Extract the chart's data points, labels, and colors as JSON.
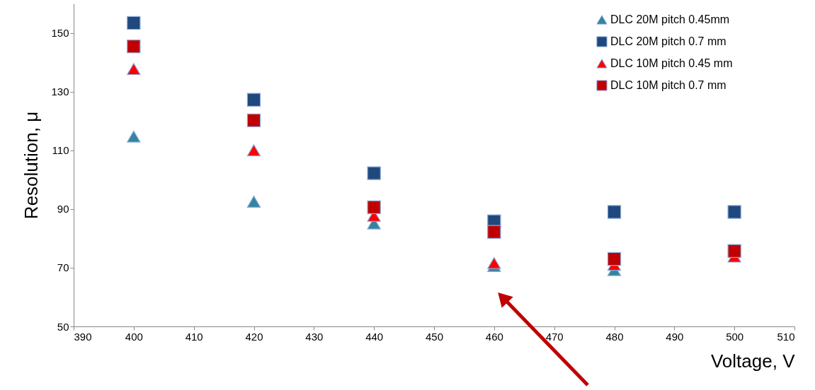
{
  "chart_data": {
    "type": "scatter",
    "xlabel": "Voltage, V",
    "ylabel": "Resolution, μ",
    "x": [
      400,
      420,
      440,
      460,
      480,
      500
    ],
    "xlim": [
      390,
      510
    ],
    "xticks": [
      390,
      400,
      410,
      420,
      430,
      440,
      450,
      460,
      470,
      480,
      490,
      500,
      510
    ],
    "ylim": [
      50,
      160
    ],
    "yticks": [
      50,
      70,
      90,
      110,
      130,
      150
    ],
    "grid": false,
    "legend": "top right",
    "series": [
      {
        "name": "DLC 20M  pitch 0.45mm",
        "color": "#31859c",
        "marker": "triangle",
        "values": [
          114.7,
          92.5,
          85.1,
          70.6,
          69.2,
          null
        ]
      },
      {
        "name": "DLC 20M pitch 0.7 mm",
        "color": "#1f497d",
        "marker": "square",
        "values": [
          153.4,
          127.2,
          102.2,
          85.8,
          89,
          89
        ]
      },
      {
        "name": "DLC 10M  pitch 0.45 mm",
        "color": "#ff0000",
        "marker": "triangle",
        "values": [
          137.7,
          110,
          87.7,
          71.6,
          71,
          73.8
        ]
      },
      {
        "name": "DLC 10M pitch 0.7 mm",
        "color": "#c00000",
        "marker": "square",
        "values": [
          145.4,
          120.2,
          90.6,
          82.2,
          73,
          75.7
        ]
      }
    ]
  }
}
